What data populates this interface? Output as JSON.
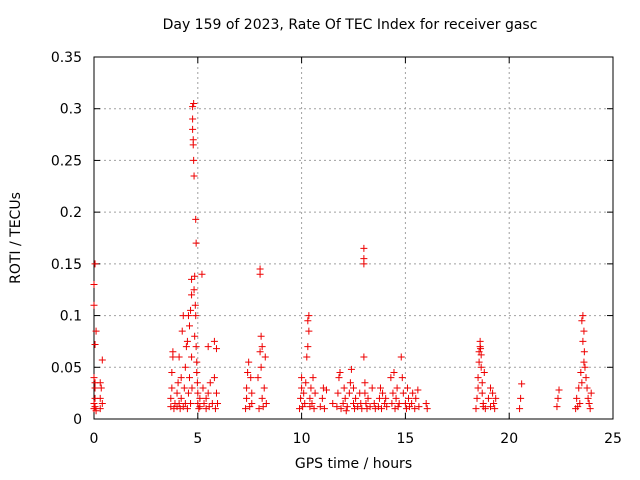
{
  "chart_data": {
    "type": "scatter",
    "title": "Day 159 of 2023, Rate Of TEC Index for receiver gasc",
    "xlabel": "GPS time / hours",
    "ylabel": "ROTI / TECUs",
    "xlim": [
      0,
      25
    ],
    "ylim": [
      0,
      0.35
    ],
    "xticks": [
      "0",
      "5",
      "10",
      "15",
      "20",
      "25"
    ],
    "yticks": [
      "0",
      "0.05",
      "0.1",
      "0.15",
      "0.2",
      "0.25",
      "0.3",
      "0.35"
    ],
    "grid": true,
    "marker": "+",
    "color": "#ee0000",
    "series": [
      {
        "values": [
          [
            0.0,
            0.01
          ],
          [
            0.0,
            0.015
          ],
          [
            0.05,
            0.02
          ],
          [
            0.05,
            0.035
          ],
          [
            0.0,
            0.04
          ],
          [
            0.05,
            0.03
          ],
          [
            0.1,
            0.085
          ],
          [
            0.05,
            0.072
          ],
          [
            0.0,
            0.11
          ],
          [
            0.0,
            0.13
          ],
          [
            0.05,
            0.15
          ],
          [
            0.1,
            0.008
          ],
          [
            0.05,
            0.012
          ],
          [
            0.3,
            0.01
          ],
          [
            0.3,
            0.02
          ],
          [
            0.3,
            0.035
          ],
          [
            0.35,
            0.03
          ],
          [
            0.4,
            0.057
          ],
          [
            0.4,
            0.015
          ],
          [
            3.7,
            0.012
          ],
          [
            3.7,
            0.02
          ],
          [
            3.75,
            0.03
          ],
          [
            3.75,
            0.045
          ],
          [
            3.8,
            0.06
          ],
          [
            3.8,
            0.065
          ],
          [
            3.85,
            0.01
          ],
          [
            3.9,
            0.015
          ],
          [
            4.0,
            0.012
          ],
          [
            4.0,
            0.025
          ],
          [
            4.05,
            0.035
          ],
          [
            4.1,
            0.015
          ],
          [
            4.1,
            0.06
          ],
          [
            4.15,
            0.01
          ],
          [
            4.2,
            0.02
          ],
          [
            4.2,
            0.04
          ],
          [
            4.25,
            0.085
          ],
          [
            4.3,
            0.1
          ],
          [
            4.3,
            0.012
          ],
          [
            4.35,
            0.03
          ],
          [
            4.4,
            0.05
          ],
          [
            4.4,
            0.015
          ],
          [
            4.45,
            0.07
          ],
          [
            4.5,
            0.01
          ],
          [
            4.5,
            0.075
          ],
          [
            4.55,
            0.025
          ],
          [
            4.55,
            0.1
          ],
          [
            4.6,
            0.09
          ],
          [
            4.6,
            0.04
          ],
          [
            4.65,
            0.015
          ],
          [
            4.65,
            0.105
          ],
          [
            4.7,
            0.12
          ],
          [
            4.7,
            0.135
          ],
          [
            4.7,
            0.06
          ],
          [
            4.72,
            0.03
          ],
          [
            4.75,
            0.302
          ],
          [
            4.75,
            0.29
          ],
          [
            4.75,
            0.28
          ],
          [
            4.78,
            0.27
          ],
          [
            4.78,
            0.265
          ],
          [
            4.8,
            0.305
          ],
          [
            4.8,
            0.25
          ],
          [
            4.82,
            0.235
          ],
          [
            4.82,
            0.125
          ],
          [
            4.85,
            0.138
          ],
          [
            4.85,
            0.08
          ],
          [
            4.88,
            0.11
          ],
          [
            4.9,
            0.193
          ],
          [
            4.9,
            0.1
          ],
          [
            4.92,
            0.17
          ],
          [
            4.92,
            0.07
          ],
          [
            4.95,
            0.055
          ],
          [
            4.95,
            0.045
          ],
          [
            4.98,
            0.035
          ],
          [
            5.0,
            0.025
          ],
          [
            5.0,
            0.015
          ],
          [
            5.05,
            0.01
          ],
          [
            5.1,
            0.02
          ],
          [
            5.1,
            0.012
          ],
          [
            5.2,
            0.14
          ],
          [
            5.25,
            0.03
          ],
          [
            5.3,
            0.015
          ],
          [
            5.4,
            0.02
          ],
          [
            5.4,
            0.01
          ],
          [
            5.5,
            0.07
          ],
          [
            5.5,
            0.025
          ],
          [
            5.55,
            0.012
          ],
          [
            5.6,
            0.035
          ],
          [
            5.7,
            0.015
          ],
          [
            5.8,
            0.075
          ],
          [
            5.8,
            0.04
          ],
          [
            5.85,
            0.01
          ],
          [
            5.9,
            0.068
          ],
          [
            5.9,
            0.025
          ],
          [
            5.95,
            0.015
          ],
          [
            7.3,
            0.01
          ],
          [
            7.35,
            0.02
          ],
          [
            7.35,
            0.03
          ],
          [
            7.4,
            0.045
          ],
          [
            7.45,
            0.055
          ],
          [
            7.5,
            0.012
          ],
          [
            7.55,
            0.04
          ],
          [
            7.6,
            0.015
          ],
          [
            7.6,
            0.025
          ],
          [
            7.9,
            0.04
          ],
          [
            7.95,
            0.01
          ],
          [
            8.0,
            0.065
          ],
          [
            8.0,
            0.145
          ],
          [
            8.0,
            0.14
          ],
          [
            8.05,
            0.08
          ],
          [
            8.05,
            0.05
          ],
          [
            8.1,
            0.02
          ],
          [
            8.1,
            0.07
          ],
          [
            8.15,
            0.012
          ],
          [
            8.2,
            0.03
          ],
          [
            8.25,
            0.06
          ],
          [
            8.3,
            0.015
          ],
          [
            9.9,
            0.01
          ],
          [
            9.95,
            0.02
          ],
          [
            10.0,
            0.03
          ],
          [
            10.0,
            0.04
          ],
          [
            10.05,
            0.012
          ],
          [
            10.1,
            0.025
          ],
          [
            10.15,
            0.015
          ],
          [
            10.2,
            0.035
          ],
          [
            10.25,
            0.06
          ],
          [
            10.3,
            0.07
          ],
          [
            10.3,
            0.095
          ],
          [
            10.35,
            0.1
          ],
          [
            10.35,
            0.085
          ],
          [
            10.4,
            0.012
          ],
          [
            10.4,
            0.02
          ],
          [
            10.45,
            0.03
          ],
          [
            10.5,
            0.015
          ],
          [
            10.55,
            0.04
          ],
          [
            10.6,
            0.01
          ],
          [
            10.65,
            0.025
          ],
          [
            10.9,
            0.012
          ],
          [
            11.0,
            0.02
          ],
          [
            11.05,
            0.03
          ],
          [
            11.1,
            0.01
          ],
          [
            11.2,
            0.028
          ],
          [
            11.5,
            0.015
          ],
          [
            11.7,
            0.012
          ],
          [
            11.75,
            0.025
          ],
          [
            11.8,
            0.04
          ],
          [
            11.85,
            0.045
          ],
          [
            11.9,
            0.01
          ],
          [
            12.0,
            0.015
          ],
          [
            12.05,
            0.03
          ],
          [
            12.1,
            0.02
          ],
          [
            12.15,
            0.008
          ],
          [
            12.2,
            0.012
          ],
          [
            12.3,
            0.025
          ],
          [
            12.35,
            0.035
          ],
          [
            12.4,
            0.048
          ],
          [
            12.5,
            0.015
          ],
          [
            12.5,
            0.03
          ],
          [
            12.55,
            0.01
          ],
          [
            12.6,
            0.02
          ],
          [
            12.7,
            0.012
          ],
          [
            12.8,
            0.025
          ],
          [
            12.85,
            0.015
          ],
          [
            12.9,
            0.01
          ],
          [
            13.0,
            0.165
          ],
          [
            13.0,
            0.155
          ],
          [
            13.0,
            0.15
          ],
          [
            13.0,
            0.06
          ],
          [
            13.05,
            0.035
          ],
          [
            13.05,
            0.025
          ],
          [
            13.1,
            0.015
          ],
          [
            13.15,
            0.01
          ],
          [
            13.2,
            0.02
          ],
          [
            13.3,
            0.012
          ],
          [
            13.4,
            0.03
          ],
          [
            13.5,
            0.015
          ],
          [
            13.55,
            0.01
          ],
          [
            13.7,
            0.012
          ],
          [
            13.75,
            0.02
          ],
          [
            13.8,
            0.03
          ],
          [
            13.85,
            0.01
          ],
          [
            13.9,
            0.025
          ],
          [
            14.0,
            0.015
          ],
          [
            14.05,
            0.02
          ],
          [
            14.1,
            0.012
          ],
          [
            14.3,
            0.04
          ],
          [
            14.35,
            0.015
          ],
          [
            14.4,
            0.025
          ],
          [
            14.45,
            0.045
          ],
          [
            14.5,
            0.01
          ],
          [
            14.55,
            0.02
          ],
          [
            14.6,
            0.03
          ],
          [
            14.65,
            0.012
          ],
          [
            14.7,
            0.015
          ],
          [
            14.8,
            0.06
          ],
          [
            14.85,
            0.04
          ],
          [
            14.9,
            0.025
          ],
          [
            15.0,
            0.015
          ],
          [
            15.05,
            0.01
          ],
          [
            15.1,
            0.03
          ],
          [
            15.15,
            0.02
          ],
          [
            15.2,
            0.012
          ],
          [
            15.3,
            0.015
          ],
          [
            15.35,
            0.025
          ],
          [
            15.45,
            0.01
          ],
          [
            15.5,
            0.02
          ],
          [
            15.6,
            0.028
          ],
          [
            15.65,
            0.012
          ],
          [
            16.0,
            0.015
          ],
          [
            16.05,
            0.01
          ],
          [
            18.4,
            0.01
          ],
          [
            18.45,
            0.02
          ],
          [
            18.5,
            0.03
          ],
          [
            18.5,
            0.04
          ],
          [
            18.55,
            0.055
          ],
          [
            18.55,
            0.065
          ],
          [
            18.6,
            0.07
          ],
          [
            18.6,
            0.075
          ],
          [
            18.62,
            0.068
          ],
          [
            18.65,
            0.062
          ],
          [
            18.65,
            0.05
          ],
          [
            18.7,
            0.035
          ],
          [
            18.7,
            0.025
          ],
          [
            18.75,
            0.015
          ],
          [
            18.75,
            0.012
          ],
          [
            18.8,
            0.045
          ],
          [
            18.85,
            0.01
          ],
          [
            19.0,
            0.02
          ],
          [
            19.1,
            0.012
          ],
          [
            19.1,
            0.03
          ],
          [
            19.2,
            0.025
          ],
          [
            19.25,
            0.015
          ],
          [
            19.3,
            0.01
          ],
          [
            19.35,
            0.02
          ],
          [
            20.5,
            0.01
          ],
          [
            20.55,
            0.02
          ],
          [
            20.6,
            0.034
          ],
          [
            22.3,
            0.012
          ],
          [
            22.35,
            0.02
          ],
          [
            22.4,
            0.028
          ],
          [
            23.2,
            0.01
          ],
          [
            23.25,
            0.02
          ],
          [
            23.3,
            0.012
          ],
          [
            23.35,
            0.03
          ],
          [
            23.4,
            0.015
          ],
          [
            23.45,
            0.045
          ],
          [
            23.5,
            0.035
          ],
          [
            23.5,
            0.095
          ],
          [
            23.55,
            0.1
          ],
          [
            23.55,
            0.075
          ],
          [
            23.6,
            0.085
          ],
          [
            23.6,
            0.055
          ],
          [
            23.62,
            0.065
          ],
          [
            23.65,
            0.05
          ],
          [
            23.7,
            0.04
          ],
          [
            23.75,
            0.03
          ],
          [
            23.8,
            0.02
          ],
          [
            23.85,
            0.015
          ],
          [
            23.9,
            0.01
          ],
          [
            23.95,
            0.025
          ]
        ]
      }
    ]
  }
}
